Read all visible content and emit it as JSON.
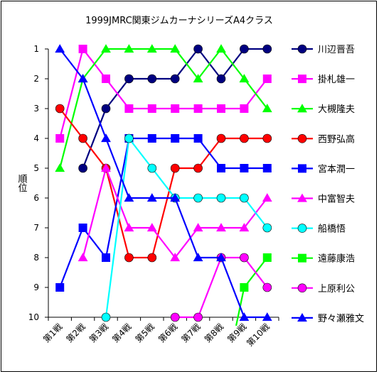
{
  "chart_data": {
    "type": "line",
    "title": "1999JMRC関東ジムカーナシリーズA4クラス",
    "ylabel": "順位",
    "xlabel": "",
    "categories": [
      "第1戦",
      "第2戦",
      "第3戦",
      "第4戦",
      "第5戦",
      "第6戦",
      "第7戦",
      "第8戦",
      "第9戦",
      "第10戦"
    ],
    "ylim": [
      10,
      1
    ],
    "y_ticks": [
      1,
      2,
      3,
      4,
      5,
      6,
      7,
      8,
      9,
      10
    ],
    "y_inverted": true,
    "grid": false,
    "legend_position": "right",
    "series": [
      {
        "name": "川辺晋吾",
        "color": "#000080",
        "marker": "circle",
        "values": [
          null,
          5,
          3,
          2,
          2,
          2,
          1,
          2,
          1,
          1
        ]
      },
      {
        "name": "掛札雄一",
        "color": "#ff00ff",
        "marker": "square",
        "values": [
          4,
          1,
          2,
          3,
          3,
          3,
          3,
          3,
          3,
          2
        ]
      },
      {
        "name": "大槻隆夫",
        "color": "#00ff00",
        "marker": "triangle",
        "values": [
          5,
          2,
          1,
          1,
          1,
          1,
          2,
          1,
          2,
          3
        ]
      },
      {
        "name": "西野弘高",
        "color": "#ff0000",
        "marker": "circle",
        "values": [
          3,
          4,
          5,
          8,
          8,
          5,
          5,
          4,
          4,
          4
        ]
      },
      {
        "name": "宮本潤一",
        "color": "#0000ff",
        "marker": "square",
        "values": [
          9,
          7,
          8,
          4,
          4,
          4,
          4,
          5,
          5,
          5
        ]
      },
      {
        "name": "中富智夫",
        "color": "#ff00ff",
        "marker": "triangle",
        "values": [
          null,
          8,
          5,
          7,
          7,
          8,
          7,
          7,
          7,
          6
        ]
      },
      {
        "name": "船橋悟",
        "color": "#00ffff",
        "marker": "circle",
        "values": [
          null,
          null,
          10,
          4,
          5,
          6,
          6,
          6,
          6,
          7
        ]
      },
      {
        "name": "遠藤康浩",
        "color": "#00ff00",
        "marker": "square",
        "values": [
          null,
          null,
          null,
          null,
          null,
          null,
          null,
          null,
          9,
          8
        ]
      },
      {
        "name": "上原利公",
        "color": "#ff00ff",
        "marker": "circle",
        "values": [
          null,
          null,
          null,
          null,
          null,
          10,
          10,
          8,
          8,
          9
        ]
      },
      {
        "name": "野々瀬雅文",
        "color": "#0000ff",
        "marker": "triangle",
        "values": [
          1,
          2,
          4,
          6,
          6,
          6,
          8,
          8,
          10,
          10
        ]
      }
    ]
  }
}
